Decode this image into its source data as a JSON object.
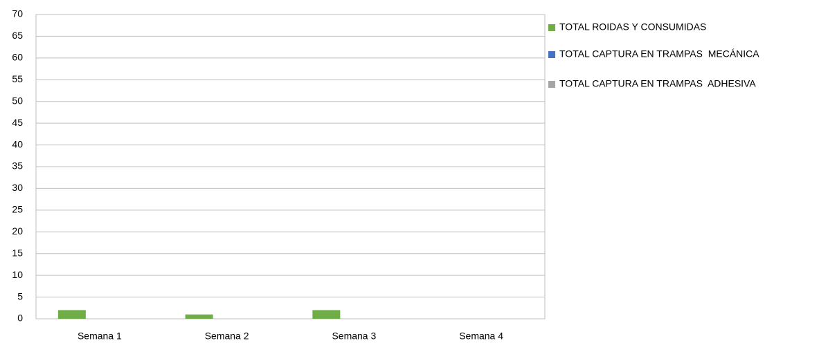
{
  "chart_data": {
    "type": "bar",
    "categories": [
      "Semana 1",
      "Semana 2",
      "Semana 3",
      "Semana 4"
    ],
    "series": [
      {
        "name": "TOTAL ROIDAS Y CONSUMIDAS",
        "color": "#70ad47",
        "values": [
          2,
          1,
          2,
          0
        ]
      },
      {
        "name": "TOTAL CAPTURA EN TRAMPAS  MECÁNICA",
        "color": "#4472c4",
        "values": [
          0,
          0,
          0,
          0
        ]
      },
      {
        "name": "TOTAL CAPTURA EN TRAMPAS  ADHESIVA",
        "color": "#a5a5a5",
        "values": [
          0,
          0,
          0,
          0
        ]
      }
    ],
    "ylim": [
      0,
      70
    ],
    "yticks": [
      0,
      5,
      10,
      15,
      20,
      25,
      30,
      35,
      40,
      45,
      50,
      55,
      60,
      65,
      70
    ],
    "grid": true,
    "legend": "right"
  }
}
